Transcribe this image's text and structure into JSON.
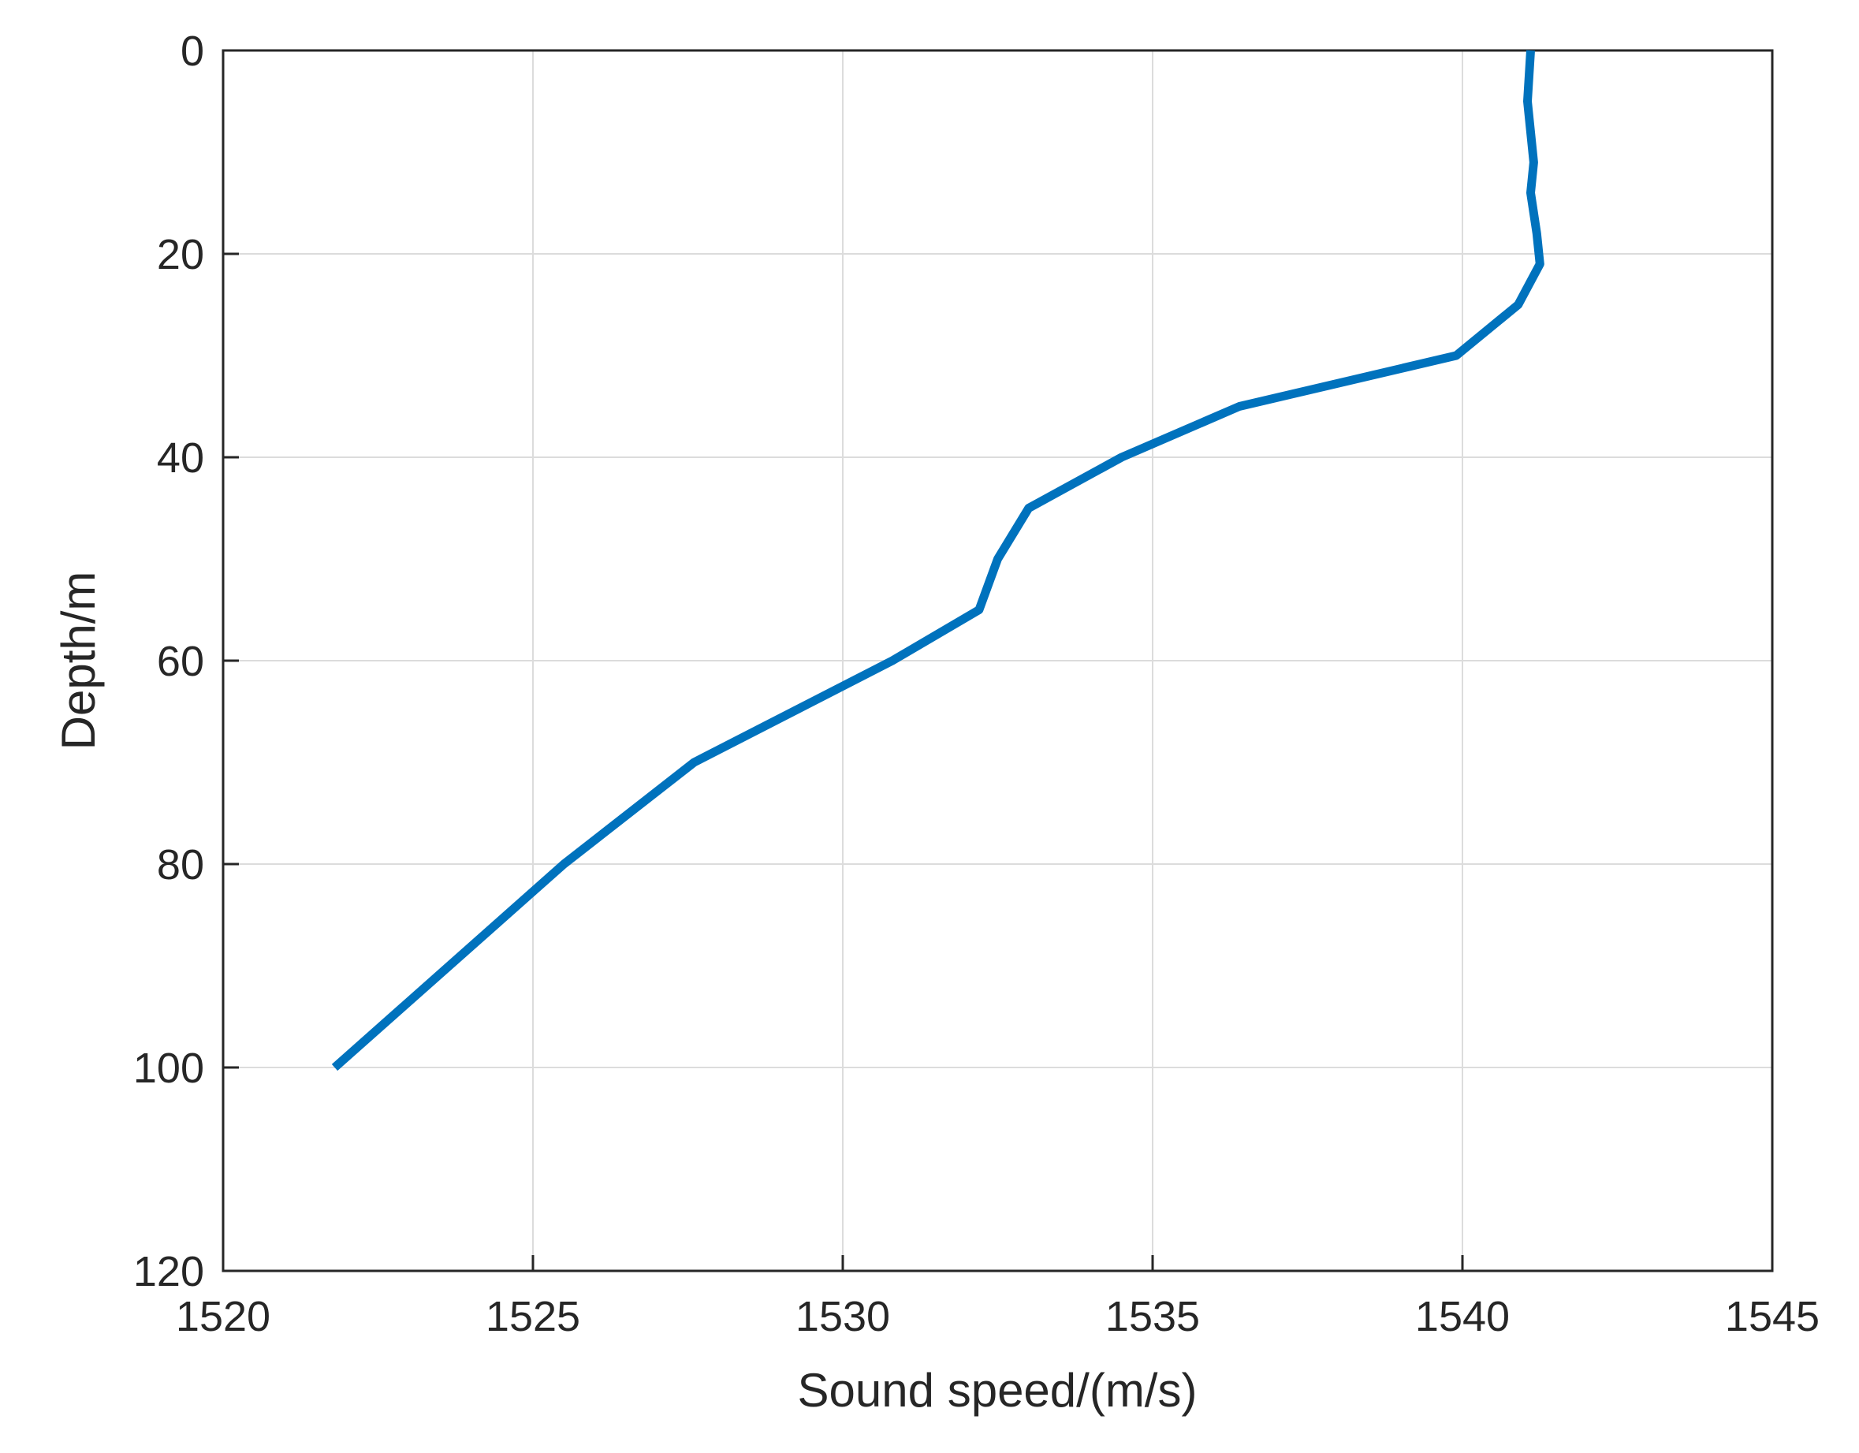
{
  "chart_data": {
    "type": "line",
    "title": "",
    "xlabel": "Sound speed/(m/s)",
    "ylabel": "Depth/m",
    "xlim": [
      1520,
      1545
    ],
    "ylim": [
      0,
      120
    ],
    "y_reversed": true,
    "grid": true,
    "xticks": [
      "1520",
      "1525",
      "1530",
      "1535",
      "1540",
      "1545"
    ],
    "yticks": [
      "0",
      "20",
      "40",
      "60",
      "80",
      "100",
      "120"
    ],
    "colors": {
      "series": "#0072BD",
      "grid": "#dcdcdc",
      "axis": "#262626"
    },
    "series": [
      {
        "x": [
          1541.1,
          1541.05,
          1541.15,
          1541.1,
          1541.2,
          1541.25,
          1540.9,
          1539.9,
          1536.4,
          1534.5,
          1533.0,
          1532.5,
          1532.2,
          1530.8,
          1527.6,
          1525.5,
          1521.8
        ],
        "y": [
          0,
          5,
          11,
          14,
          18,
          21,
          25,
          30,
          35,
          40,
          45,
          50,
          55,
          60,
          70,
          80,
          100
        ]
      }
    ]
  }
}
